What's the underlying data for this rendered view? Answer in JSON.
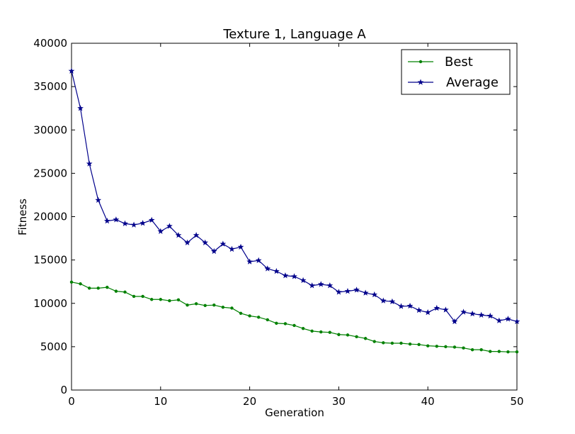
{
  "chart_data": {
    "type": "line",
    "title": "Texture 1, Language A",
    "xlabel": "Generation",
    "ylabel": "Fitness",
    "xlim": [
      0,
      50
    ],
    "ylim": [
      0,
      40000
    ],
    "xticks": [
      0,
      10,
      20,
      30,
      40,
      50
    ],
    "yticks": [
      0,
      5000,
      10000,
      15000,
      20000,
      25000,
      30000,
      35000,
      40000
    ],
    "grid": false,
    "legend_position": "top-right",
    "x": [
      0,
      1,
      2,
      3,
      4,
      5,
      6,
      7,
      8,
      9,
      10,
      11,
      12,
      13,
      14,
      15,
      16,
      17,
      18,
      19,
      20,
      21,
      22,
      23,
      24,
      25,
      26,
      27,
      28,
      29,
      30,
      31,
      32,
      33,
      34,
      35,
      36,
      37,
      38,
      39,
      40,
      41,
      42,
      43,
      44,
      45,
      46,
      47,
      48,
      49,
      50
    ],
    "series": [
      {
        "name": "Best",
        "color": "#008000",
        "marker": "dot",
        "values": [
          12450,
          12250,
          11750,
          11750,
          11850,
          11400,
          11300,
          10800,
          10800,
          10450,
          10450,
          10300,
          10400,
          9800,
          9950,
          9750,
          9800,
          9550,
          9450,
          8850,
          8550,
          8400,
          8100,
          7700,
          7650,
          7450,
          7100,
          6800,
          6700,
          6650,
          6400,
          6350,
          6150,
          5950,
          5600,
          5450,
          5400,
          5400,
          5300,
          5250,
          5100,
          5050,
          5000,
          4950,
          4850,
          4650,
          4650,
          4450,
          4450,
          4400,
          4400
        ]
      },
      {
        "name": "Average",
        "color": "#00008B",
        "marker": "star",
        "values": [
          36800,
          32500,
          26100,
          21900,
          19500,
          19650,
          19200,
          19050,
          19250,
          19600,
          18300,
          18900,
          17850,
          17000,
          17850,
          17000,
          16000,
          16850,
          16250,
          16500,
          14800,
          14950,
          14000,
          13700,
          13200,
          13100,
          12650,
          12050,
          12200,
          12050,
          11300,
          11400,
          11550,
          11200,
          11000,
          10300,
          10200,
          9650,
          9700,
          9200,
          8950,
          9450,
          9250,
          7900,
          9000,
          8800,
          8650,
          8550,
          8000,
          8200,
          7900
        ]
      }
    ]
  }
}
